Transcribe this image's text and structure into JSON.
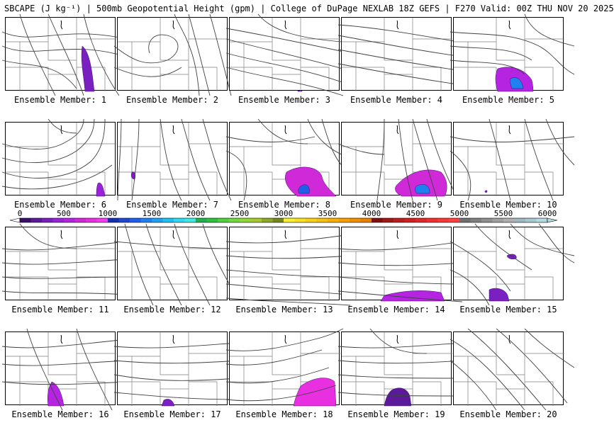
{
  "header": {
    "title": "SBCAPE (J kg⁻¹) | 500mb Geopotential Height (gpm) | College of DuPage NEXLAB 18Z GEFS | F270 Valid: 00Z THU NOV 20 2025"
  },
  "panels": [
    {
      "label": "Ensemble Member: 1"
    },
    {
      "label": "Ensemble Member: 2"
    },
    {
      "label": "Ensemble Member: 3"
    },
    {
      "label": "Ensemble Member: 4"
    },
    {
      "label": "Ensemble Member: 5"
    },
    {
      "label": "Ensemble Member: 6"
    },
    {
      "label": "Ensemble Member: 7"
    },
    {
      "label": "Ensemble Member: 8"
    },
    {
      "label": "Ensemble Member: 9"
    },
    {
      "label": "Ensemble Member: 10"
    },
    {
      "label": "Ensemble Member: 11"
    },
    {
      "label": "Ensemble Member: 12"
    },
    {
      "label": "Ensemble Member: 13"
    },
    {
      "label": "Ensemble Member: 14"
    },
    {
      "label": "Ensemble Member: 15"
    },
    {
      "label": "Ensemble Member: 16"
    },
    {
      "label": "Ensemble Member: 17"
    },
    {
      "label": "Ensemble Member: 18"
    },
    {
      "label": "Ensemble Member: 19"
    },
    {
      "label": "Ensemble Member: 20"
    }
  ],
  "colorbar": {
    "ticks": [
      "0",
      "500",
      "1000",
      "1500",
      "2000",
      "2500",
      "3000",
      "3500",
      "4000",
      "4500",
      "5000",
      "5500",
      "6000"
    ],
    "min": 0,
    "max": 6000,
    "colors": [
      "#3a0f6b",
      "#5a1a9a",
      "#7a1fc0",
      "#9a22d8",
      "#b524e0",
      "#d02ad8",
      "#e830e0",
      "#f23cf0",
      "#1830b0",
      "#1f48d0",
      "#2060e8",
      "#1f80f0",
      "#20a0f0",
      "#20c0f0",
      "#30d8f0",
      "#40e8e0",
      "#20b050",
      "#30c040",
      "#50d040",
      "#70d840",
      "#90d838",
      "#a8c830",
      "#90a828",
      "#788820",
      "#f8f030",
      "#f8e020",
      "#f8d018",
      "#f8c010",
      "#f8b008",
      "#f8a000",
      "#f09000",
      "#e88000",
      "#801010",
      "#a01818",
      "#b82020",
      "#d02020",
      "#e02828",
      "#f03030",
      "#f83838",
      "#ff4040",
      "#707070",
      "#808080",
      "#909090",
      "#a0a0a0",
      "#b0b0b0",
      "#a0b8c0",
      "#a8c8d0",
      "#b8d8e0"
    ]
  }
}
